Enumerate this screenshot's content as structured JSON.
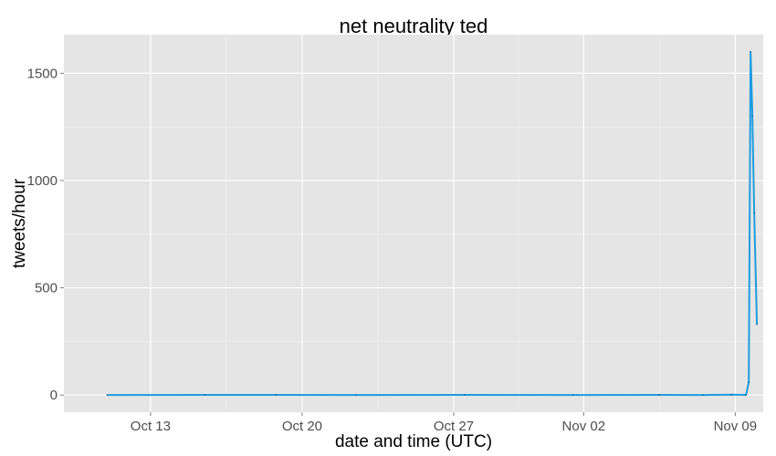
{
  "chart_data": {
    "type": "line",
    "title": "net neutrality ted",
    "xlabel": "date and time (UTC)",
    "ylabel": "tweets/hour",
    "x_range": [
      "2014-10-09T00:00",
      "2014-11-10T07:00"
    ],
    "y_range": [
      -80,
      1680
    ],
    "x_ticks": [
      {
        "date": "2014-10-13",
        "label": "Oct 13"
      },
      {
        "date": "2014-10-20",
        "label": "Oct 20"
      },
      {
        "date": "2014-10-27",
        "label": "Oct 27"
      },
      {
        "date": "2014-11-02",
        "label": "Nov 02"
      },
      {
        "date": "2014-11-09",
        "label": "Nov 09"
      }
    ],
    "y_ticks": [
      0,
      500,
      1000,
      1500
    ],
    "grid": true,
    "line_color": "#1f9bde",
    "panel_color": "#e5e5e5",
    "series": [
      {
        "points": [
          {
            "x": "2014-10-11T00:00",
            "y": 0
          },
          {
            "x": "2014-10-15T12:00",
            "y": 1
          },
          {
            "x": "2014-10-18T19:00",
            "y": 1
          },
          {
            "x": "2014-10-22T12:00",
            "y": 0
          },
          {
            "x": "2014-10-27T12:00",
            "y": 1
          },
          {
            "x": "2014-11-01T12:00",
            "y": 0
          },
          {
            "x": "2014-11-05T12:00",
            "y": 1
          },
          {
            "x": "2014-11-07T12:00",
            "y": 0
          },
          {
            "x": "2014-11-08T20:00",
            "y": 2
          },
          {
            "x": "2014-11-09T12:00",
            "y": 1
          },
          {
            "x": "2014-11-09T15:00",
            "y": 60
          },
          {
            "x": "2014-11-09T17:00",
            "y": 1600
          },
          {
            "x": "2014-11-09T19:00",
            "y": 1300
          },
          {
            "x": "2014-11-09T21:00",
            "y": 850
          },
          {
            "x": "2014-11-10T00:00",
            "y": 330
          }
        ]
      }
    ]
  }
}
